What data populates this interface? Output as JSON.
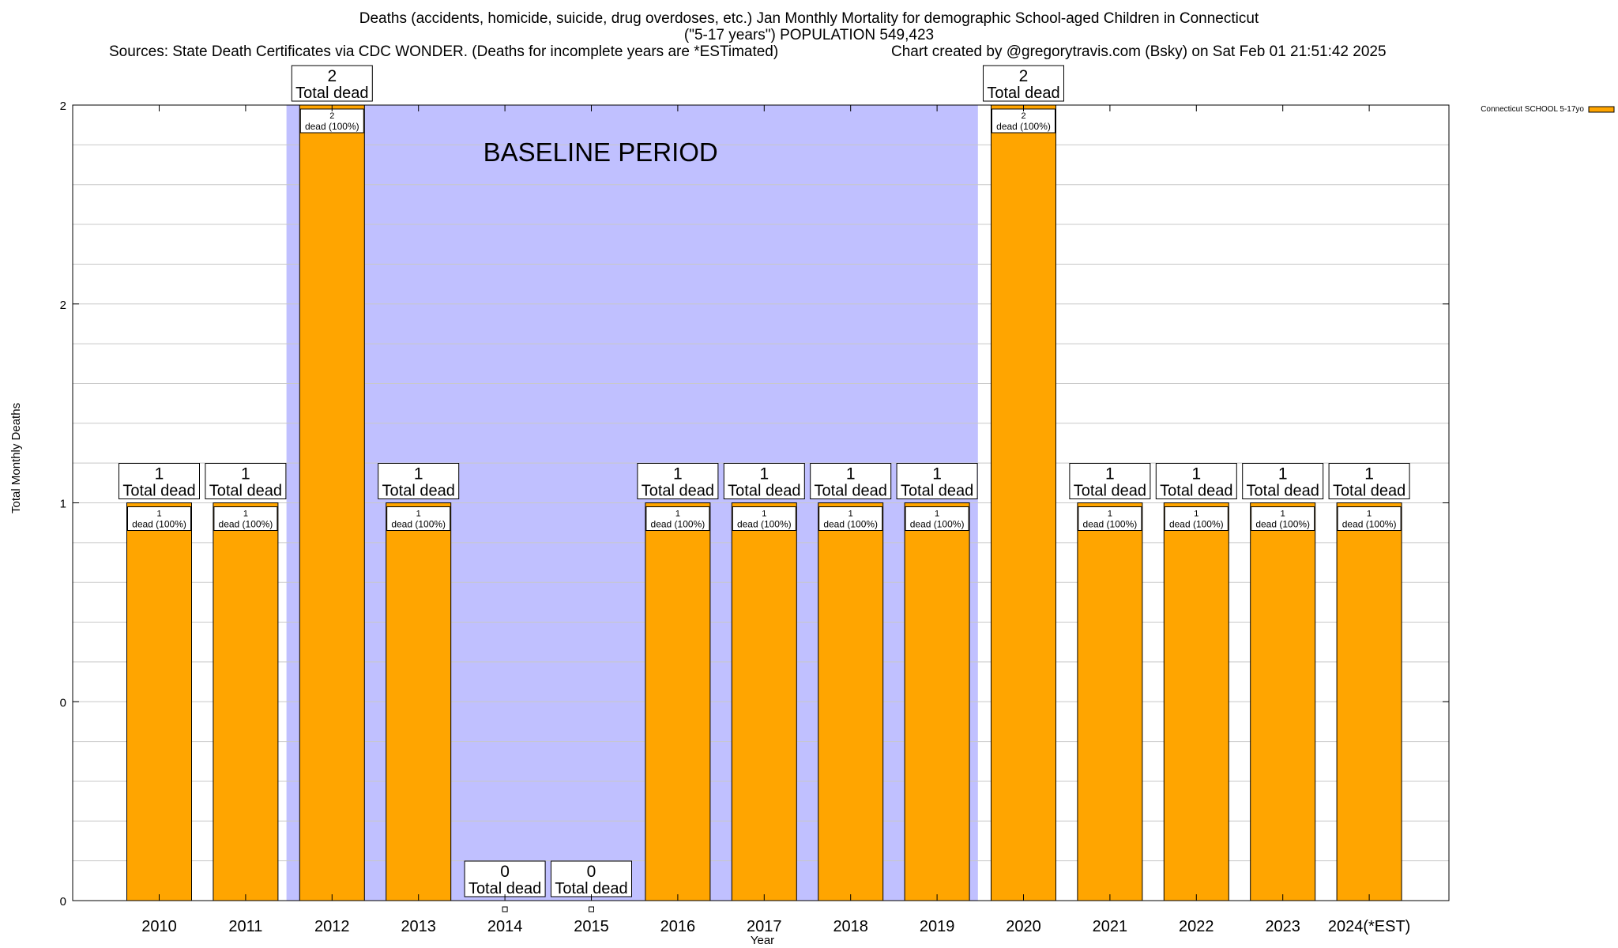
{
  "titles": {
    "line1": "Deaths (accidents, homicide, suicide, drug overdoses, etc.) Jan Monthly Mortality for demographic School-aged Children in Connecticut",
    "line2": "(\"5-17 years\") POPULATION 549,423",
    "sources": "Sources: State Death Certificates via CDC WONDER. (Deaths for incomplete years are *ESTimated)",
    "credit": "Chart created by @gregorytravis.com (Bsky) on Sat Feb 01 21:51:42 2025"
  },
  "colors": {
    "bar": "#ffa500",
    "baseline": "#c0c0ff",
    "grid": "#c8c8c8"
  },
  "chart_data": {
    "type": "bar",
    "title": "Deaths (accidents, homicide, suicide, drug overdoses, etc.) Jan Monthly Mortality for demographic School-aged Children in Connecticut",
    "xlabel": "Year",
    "ylabel": "Total Monthly Deaths",
    "categories": [
      "2010",
      "2011",
      "2012",
      "2013",
      "2014",
      "2015",
      "2016",
      "2017",
      "2018",
      "2019",
      "2020",
      "2021",
      "2022",
      "2023",
      "2024(*EST)"
    ],
    "series": [
      {
        "name": "Connecticut SCHOOL 5-17yo",
        "values": [
          1,
          1,
          2,
          1,
          0,
          0,
          1,
          1,
          1,
          1,
          2,
          1,
          1,
          1,
          1
        ]
      }
    ],
    "ylim": [
      0,
      2
    ],
    "y_tick_labels": [
      "0",
      "0",
      "1",
      "2",
      "2"
    ],
    "y_tick_values": [
      0,
      0.5,
      1,
      1.5,
      2
    ],
    "total_label": "Total dead",
    "segment_label": "dead (100%)",
    "annotation": {
      "text": "BASELINE PERIOD",
      "from": "2012",
      "to": "2019"
    },
    "legend": "top-right",
    "grid": true
  }
}
